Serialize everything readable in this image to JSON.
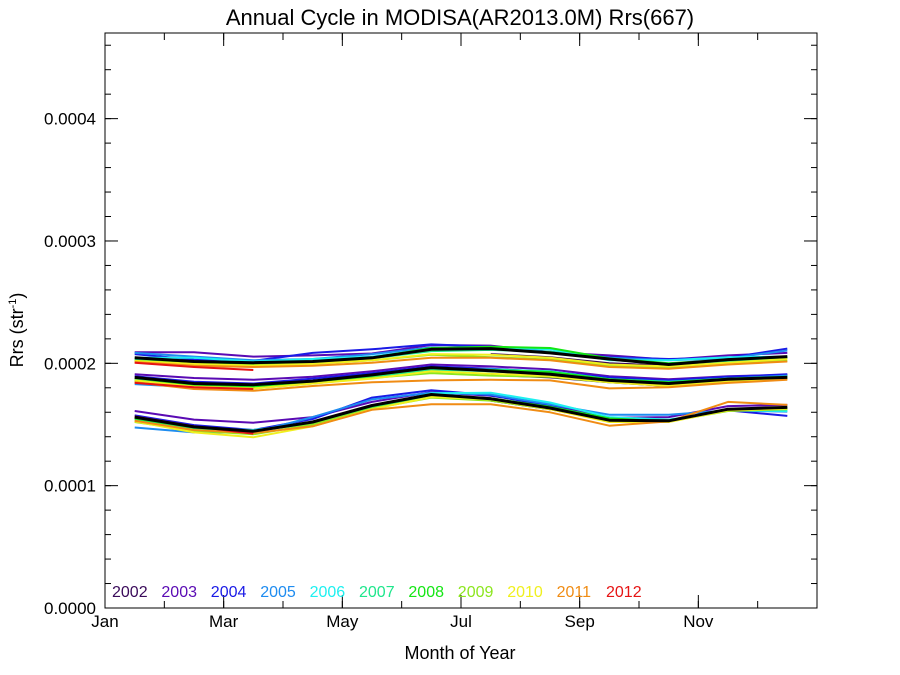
{
  "chart_data": {
    "type": "line",
    "title": "Annual Cycle in MODISA(AR2013.0M) Rrs(667)",
    "xlabel": "Month of Year",
    "ylabel_main": "Rrs (str",
    "ylabel_sup": "-1",
    "ylabel_close": ")",
    "xlim": [
      1,
      13
    ],
    "ylim": [
      0,
      0.00047
    ],
    "xticks": [
      {
        "x": 1,
        "label": "Jan"
      },
      {
        "x": 3,
        "label": "Mar"
      },
      {
        "x": 5,
        "label": "May"
      },
      {
        "x": 7,
        "label": "Jul"
      },
      {
        "x": 9,
        "label": "Sep"
      },
      {
        "x": 11,
        "label": "Nov"
      }
    ],
    "yticks": [
      {
        "y": 0,
        "label": "0.0000"
      },
      {
        "y": 0.0001,
        "label": "0.0001"
      },
      {
        "y": 0.0002,
        "label": "0.0002"
      },
      {
        "y": 0.0003,
        "label": "0.0003"
      },
      {
        "y": 0.0004,
        "label": "0.0004"
      }
    ],
    "x_months": [
      1.5,
      2.5,
      3.5,
      4.5,
      5.5,
      6.5,
      7.5,
      8.5,
      9.5,
      10.5,
      11.5,
      12.5
    ],
    "mean_color": "#000000",
    "mean_curves": [
      [
        0.0002045,
        0.0002015,
        0.0002005,
        0.0002015,
        0.0002045,
        0.0002115,
        0.000212,
        0.0002085,
        0.0002035,
        0.000199,
        0.000203,
        0.0002055
      ],
      [
        0.0001885,
        0.0001835,
        0.0001825,
        0.0001855,
        0.0001905,
        0.0001965,
        0.000194,
        0.000191,
        0.000186,
        0.0001835,
        0.000187,
        0.0001885
      ],
      [
        0.000156,
        0.000148,
        0.0001445,
        0.000152,
        0.0001655,
        0.0001745,
        0.000171,
        0.0001635,
        0.0001535,
        0.000153,
        0.0001625,
        0.000164
      ]
    ],
    "series": [
      {
        "name": "2002",
        "color": "#3a0a5a",
        "curves": [
          [
            null,
            null,
            null,
            null,
            null,
            null,
            0.0002075,
            0.000205,
            0.0002,
            0.000198,
            0.0002025,
            0.000205
          ],
          [
            null,
            null,
            null,
            null,
            null,
            null,
            0.0001905,
            0.0001885,
            0.0001845,
            0.0001815,
            0.0001855,
            0.0001875
          ],
          [
            null,
            null,
            null,
            null,
            null,
            null,
            0.0001695,
            0.0001625,
            0.0001525,
            0.0001525,
            0.000162,
            0.0001635
          ]
        ]
      },
      {
        "name": "2003",
        "color": "#5a0ab4",
        "curves": [
          [
            0.000209,
            0.000209,
            0.0002055,
            0.0002065,
            0.000208,
            0.000215,
            0.0002145,
            0.000209,
            0.0002065,
            0.000203,
            0.0002065,
            0.0002085
          ],
          [
            0.000191,
            0.000188,
            0.0001865,
            0.000189,
            0.0001935,
            0.000199,
            0.0001975,
            0.000195,
            0.0001895,
            0.000187,
            0.0001895,
            0.0001905
          ],
          [
            0.000161,
            0.000154,
            0.0001515,
            0.000156,
            0.0001685,
            0.0001765,
            0.0001735,
            0.0001665,
            0.0001555,
            0.000156,
            0.000165,
            0.000166
          ]
        ]
      },
      {
        "name": "2004",
        "color": "#1a1ae6",
        "curves": [
          [
            0.0002075,
            0.000203,
            0.000202,
            0.0002085,
            0.0002115,
            0.0002155,
            0.0002135,
            0.0002095,
            0.000205,
            0.0002035,
            0.0002045,
            0.000212
          ],
          [
            0.0001895,
            0.000185,
            0.0001835,
            0.0001875,
            0.000192,
            0.0001975,
            0.0001955,
            0.000193,
            0.0001885,
            0.000186,
            0.000189,
            0.000191
          ],
          [
            0.0001575,
            0.0001495,
            0.0001455,
            0.0001545,
            0.000172,
            0.000178,
            0.000174,
            0.000165,
            0.0001545,
            0.0001535,
            0.0001615,
            0.000157
          ]
        ]
      },
      {
        "name": "2005",
        "color": "#1e8cf0",
        "curves": [
          [
            0.0002085,
            0.0002055,
            0.0002025,
            0.0002035,
            0.0002075,
            0.000213,
            0.000212,
            0.0002095,
            0.0002045,
            0.0002025,
            0.000204,
            0.0002105
          ],
          [
            0.000183,
            0.0001805,
            0.000182,
            0.0001855,
            0.00019,
            0.0001955,
            0.0001935,
            0.000191,
            0.0001865,
            0.000184,
            0.0001875,
            0.00019
          ],
          [
            0.0001475,
            0.0001435,
            0.0001435,
            0.000156,
            0.0001705,
            0.000176,
            0.0001745,
            0.0001665,
            0.000158,
            0.000158,
            0.0001615,
            0.0001605
          ]
        ]
      },
      {
        "name": "2006",
        "color": "#1ef0f0",
        "curves": [
          [
            0.0002045,
            0.0002045,
            0.0002015,
            0.0002035,
            0.0002055,
            0.000212,
            0.000213,
            0.0002115,
            0.0002025,
            0.0002025,
            0.000205,
            0.0002055
          ],
          [
            0.0001855,
            0.0001815,
            0.0001805,
            0.000185,
            0.000189,
            0.000194,
            0.000195,
            0.0001935,
            0.000187,
            0.000185,
            0.0001875,
            0.000189
          ],
          [
            0.000155,
            0.000147,
            0.0001455,
            0.000151,
            0.0001645,
            0.0001755,
            0.000176,
            0.000168,
            0.000156,
            0.000154,
            0.0001615,
            0.000161
          ]
        ]
      },
      {
        "name": "2007",
        "color": "#1ee68c",
        "curves": [
          [
            0.000203,
            0.000201,
            0.0001995,
            0.000201,
            0.000204,
            0.00021,
            0.000211,
            0.0002095,
            0.000203,
            0.000199,
            0.000202,
            0.0002045
          ],
          [
            0.000187,
            0.000183,
            0.000182,
            0.0001845,
            0.000189,
            0.000195,
            0.0001935,
            0.0001915,
            0.0001855,
            0.000183,
            0.0001865,
            0.000188
          ],
          [
            0.000154,
            0.000147,
            0.0001445,
            0.000151,
            0.000164,
            0.0001735,
            0.0001715,
            0.0001635,
            0.000154,
            0.0001525,
            0.0001615,
            0.0001625
          ]
        ]
      },
      {
        "name": "2008",
        "color": "#14e614",
        "curves": [
          [
            0.000202,
            0.0002,
            0.000199,
            0.0002015,
            0.0002045,
            0.0002125,
            0.0002135,
            0.0002125,
            0.000204,
            0.0002,
            0.000203,
            0.000205
          ],
          [
            0.000186,
            0.000182,
            0.000181,
            0.0001845,
            0.00019,
            0.0001965,
            0.0001945,
            0.000193,
            0.000187,
            0.0001845,
            0.0001875,
            0.000189
          ],
          [
            0.000155,
            0.0001475,
            0.0001445,
            0.000152,
            0.000165,
            0.000174,
            0.0001715,
            0.0001645,
            0.000155,
            0.0001525,
            0.0001625,
            0.000164
          ]
        ]
      },
      {
        "name": "2009",
        "color": "#8ce61e",
        "curves": [
          [
            0.0002015,
            0.000199,
            0.0001985,
            0.0001995,
            0.0002025,
            0.000207,
            0.000205,
            0.000203,
            0.0001985,
            0.0001965,
            0.0002,
            0.000202
          ],
          [
            0.000185,
            0.000181,
            0.0001795,
            0.0001835,
            0.000188,
            0.000192,
            0.00019,
            0.000189,
            0.0001845,
            0.000182,
            0.000186,
            0.0001875
          ],
          [
            0.000152,
            0.000145,
            0.000142,
            0.00015,
            0.000163,
            0.000172,
            0.0001695,
            0.0001625,
            0.0001535,
            0.0001525,
            0.000161,
            0.0001625
          ]
        ]
      },
      {
        "name": "2010",
        "color": "#f0f01e",
        "curves": [
          [
            0.000202,
            0.0001995,
            0.000198,
            0.0001995,
            0.0002025,
            0.0002075,
            0.000207,
            0.0002045,
            0.000199,
            0.0001975,
            0.0002005,
            0.0002035
          ],
          [
            0.000186,
            0.000181,
            0.0001795,
            0.0001835,
            0.0001875,
            0.0001935,
            0.0001915,
            0.0001895,
            0.0001845,
            0.0001815,
            0.0001855,
            0.0001875
          ],
          [
            0.0001525,
            0.0001435,
            0.0001395,
            0.0001485,
            0.0001625,
            0.0001725,
            0.0001705,
            0.0001625,
            0.000152,
            0.000152,
            0.0001615,
            0.000163
          ]
        ]
      },
      {
        "name": "2011",
        "color": "#f08c14",
        "curves": [
          [
            0.000201,
            0.000198,
            0.000197,
            0.000198,
            0.0002005,
            0.0002045,
            0.0002045,
            0.0002025,
            0.000197,
            0.0001955,
            0.000199,
            0.0002015
          ],
          [
            0.0001845,
            0.000179,
            0.0001775,
            0.0001815,
            0.0001845,
            0.000186,
            0.0001865,
            0.000186,
            0.0001795,
            0.0001805,
            0.000184,
            0.0001865
          ],
          [
            0.000153,
            0.0001455,
            0.000143,
            0.0001485,
            0.000162,
            0.0001665,
            0.0001665,
            0.00016,
            0.000149,
            0.0001525,
            0.0001685,
            0.000166
          ]
        ]
      },
      {
        "name": "2012",
        "color": "#e61414",
        "curves": [
          [
            0.0002005,
            0.000197,
            0.0001945,
            null,
            null,
            null,
            null,
            null,
            null,
            null,
            null,
            null
          ],
          [
            0.000184,
            0.0001805,
            0.000179,
            null,
            null,
            null,
            null,
            null,
            null,
            null,
            null,
            null
          ],
          [
            0.0001565,
            0.0001485,
            0.0001425,
            null,
            null,
            null,
            null,
            null,
            null,
            null,
            null,
            null
          ]
        ]
      }
    ]
  }
}
